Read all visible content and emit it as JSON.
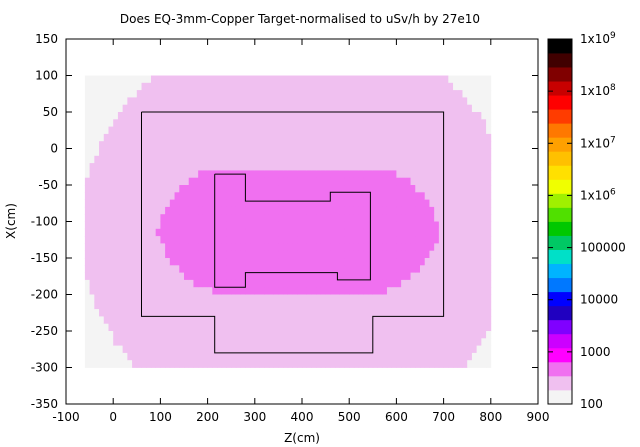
{
  "chart_data": {
    "type": "heatmap",
    "title": "Does EQ-3mm-Copper Target-normalised to uSv/h by 27e10",
    "xlabel": "Z(cm)",
    "ylabel": "X(cm)",
    "xlim": [
      -100,
      900
    ],
    "ylim": [
      -350,
      150
    ],
    "x_ticks": [
      "-100",
      "0",
      "100",
      "200",
      "300",
      "400",
      "500",
      "600",
      "700",
      "800",
      "900"
    ],
    "y_ticks": [
      "150",
      "100",
      "50",
      "0",
      "-50",
      "-100",
      "-150",
      "-200",
      "-250",
      "-300",
      "-350"
    ],
    "mesh_extent": {
      "z": [
        -60,
        800
      ],
      "x": [
        -300,
        100
      ]
    },
    "hotspot": {
      "z": 360,
      "x": -100
    },
    "colorbar": {
      "scale": "log",
      "range": [
        100,
        1000000000
      ],
      "ticks": [
        "100",
        "1000",
        "10000",
        "100000",
        "1x10^6",
        "1x10^7",
        "1x10^8",
        "1x10^9"
      ]
    },
    "outline_outer": [
      [
        60,
        50
      ],
      [
        700,
        50
      ],
      [
        700,
        -230
      ],
      [
        550,
        -230
      ],
      [
        550,
        -280
      ],
      [
        215,
        -280
      ],
      [
        215,
        -230
      ],
      [
        60,
        -230
      ],
      [
        60,
        50
      ]
    ],
    "outline_inner": [
      [
        215,
        -35
      ],
      [
        280,
        -35
      ],
      [
        280,
        -72
      ],
      [
        460,
        -72
      ],
      [
        460,
        -60
      ],
      [
        545,
        -60
      ],
      [
        545,
        -180
      ],
      [
        475,
        -180
      ],
      [
        475,
        -170
      ],
      [
        280,
        -170
      ],
      [
        280,
        -190
      ],
      [
        215,
        -190
      ],
      [
        215,
        -35
      ]
    ]
  }
}
